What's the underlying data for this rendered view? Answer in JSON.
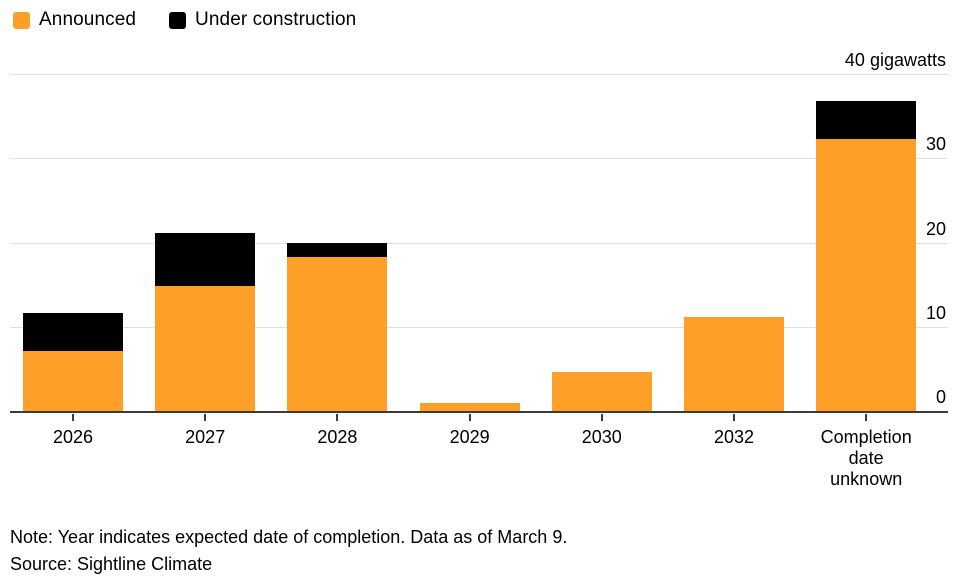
{
  "chart_data": {
    "type": "bar",
    "stacked": true,
    "categories": [
      "2026",
      "2027",
      "2028",
      "2029",
      "2030",
      "2032",
      "Completion date unknown"
    ],
    "series": [
      {
        "name": "Announced",
        "color": "#FEA028",
        "values": [
          7.3,
          14.9,
          18.4,
          1.1,
          4.7,
          11.3,
          32.4
        ]
      },
      {
        "name": "Under construction",
        "color": "#000000",
        "values": [
          4.4,
          6.4,
          1.7,
          0,
          0,
          0,
          4.5
        ]
      }
    ],
    "title": "",
    "xlabel": "",
    "ylabel": "gigawatts",
    "ylim": [
      0,
      40
    ],
    "yticks": [
      {
        "value": 0,
        "label": "0"
      },
      {
        "value": 10,
        "label": "10"
      },
      {
        "value": 20,
        "label": "20"
      },
      {
        "value": 30,
        "label": "30"
      },
      {
        "value": 40,
        "label": "40 gigawatts"
      }
    ],
    "grid": true,
    "legend_position": "top-left"
  },
  "colors": {
    "announced": "#FEA028",
    "under_construction": "#000000",
    "gridline": "#e0e0e0",
    "axis": "#3c3c3c"
  },
  "footer": {
    "note": "Note: Year indicates expected date of completion. Data as of March 9.",
    "source": "Source: Sightline Climate"
  }
}
